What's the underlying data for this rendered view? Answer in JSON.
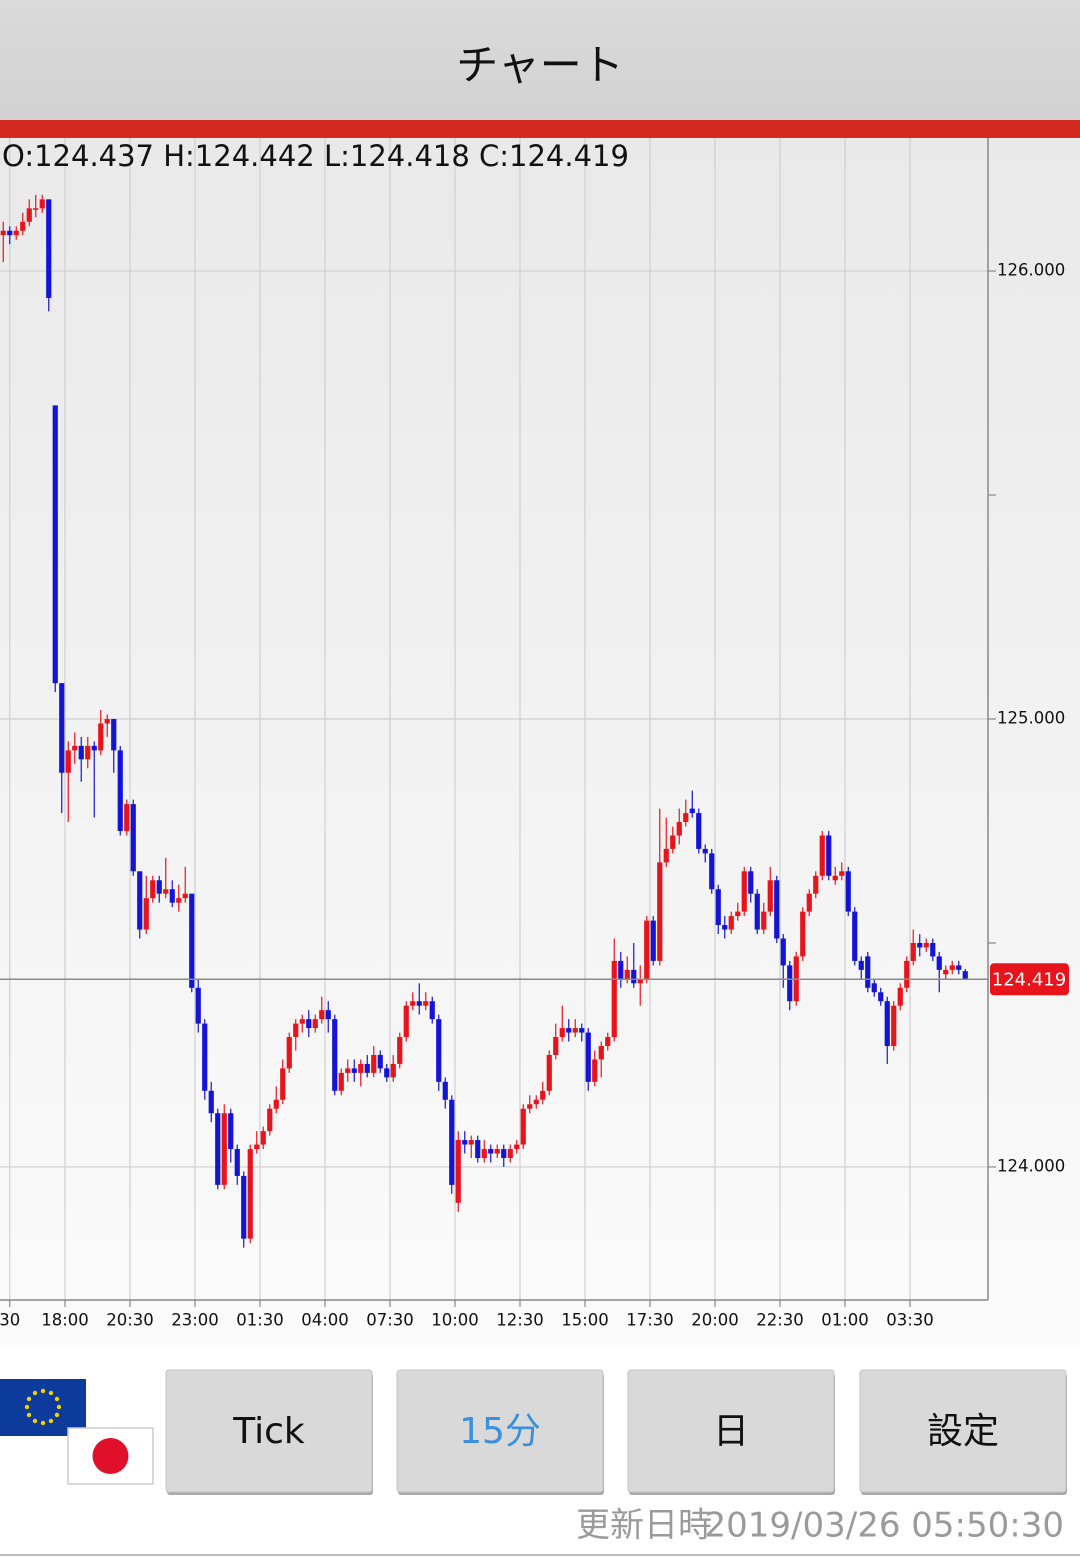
{
  "header": {
    "title": "チャート"
  },
  "chart_data": {
    "type": "candlestick",
    "ohlc_text": "O:124.437 H:124.442 L:124.418 C:124.419",
    "up_color": "#e8141b",
    "down_color": "#1414d6",
    "open": [
      126.08,
      126.09,
      126.08,
      126.09,
      126.11,
      126.14,
      126.14,
      126.16,
      125.7,
      125.08,
      124.88,
      124.93,
      124.94,
      124.91,
      124.94,
      124.93,
      124.99,
      125.0,
      124.93,
      124.75,
      124.81,
      124.66,
      124.53,
      124.6,
      124.64,
      124.61,
      124.62,
      124.59,
      124.6,
      124.61,
      124.4,
      124.32,
      124.17,
      124.12,
      123.96,
      124.12,
      124.04,
      123.98,
      123.84,
      124.04,
      124.05,
      124.08,
      124.13,
      124.15,
      124.22,
      124.29,
      124.32,
      124.33,
      124.31,
      124.33,
      124.35,
      124.33,
      124.17,
      124.21,
      124.22,
      124.21,
      124.23,
      124.21,
      124.25,
      124.22,
      124.2,
      124.23,
      124.29,
      124.36,
      124.37,
      124.36,
      124.37,
      124.33,
      124.19,
      124.15,
      123.92,
      124.06,
      124.05,
      124.06,
      124.02,
      124.04,
      124.03,
      124.04,
      124.02,
      124.04,
      124.05,
      124.13,
      124.14,
      124.15,
      124.17,
      124.25,
      124.29,
      124.31,
      124.3,
      124.31,
      124.3,
      124.19,
      124.24,
      124.27,
      124.29,
      124.46,
      124.42,
      124.44,
      124.41,
      124.42,
      124.55,
      124.46,
      124.68,
      124.71,
      124.74,
      124.77,
      124.8,
      124.79,
      124.71,
      124.7,
      124.62,
      124.54,
      124.53,
      124.56,
      124.57,
      124.66,
      124.61,
      124.53,
      124.57,
      124.64,
      124.51,
      124.45,
      124.37,
      124.47,
      124.57,
      124.61,
      124.65,
      124.74,
      124.64,
      124.65,
      124.66,
      124.57,
      124.46,
      124.47,
      124.41,
      124.39,
      124.37,
      124.27,
      124.36,
      124.4,
      124.46,
      124.5,
      124.49,
      124.5,
      124.47,
      124.43,
      124.44,
      124.45,
      124.437
    ],
    "high": [
      126.11,
      126.1,
      126.1,
      126.13,
      126.16,
      126.17,
      126.17,
      126.16,
      125.7,
      125.08,
      124.95,
      124.97,
      124.96,
      124.96,
      124.95,
      125.02,
      125.01,
      125.0,
      124.94,
      124.82,
      124.82,
      124.66,
      124.65,
      124.65,
      124.65,
      124.69,
      124.64,
      124.63,
      124.67,
      124.61,
      124.42,
      124.33,
      124.19,
      124.13,
      124.14,
      124.13,
      124.05,
      123.99,
      124.05,
      124.08,
      124.09,
      124.14,
      124.18,
      124.24,
      124.3,
      124.33,
      124.34,
      124.35,
      124.34,
      124.38,
      124.37,
      124.34,
      124.22,
      124.24,
      124.24,
      124.24,
      124.25,
      124.27,
      124.26,
      124.23,
      124.25,
      124.3,
      124.37,
      124.39,
      124.41,
      124.39,
      124.38,
      124.34,
      124.2,
      124.16,
      124.08,
      124.08,
      124.07,
      124.07,
      124.06,
      124.05,
      124.05,
      124.05,
      124.05,
      124.06,
      124.14,
      124.16,
      124.16,
      124.19,
      124.26,
      124.32,
      124.36,
      124.33,
      124.33,
      124.32,
      124.31,
      124.26,
      124.28,
      124.3,
      124.51,
      124.48,
      124.47,
      124.5,
      124.45,
      124.56,
      124.56,
      124.8,
      124.78,
      124.76,
      124.8,
      124.82,
      124.84,
      124.8,
      124.72,
      124.71,
      124.63,
      124.56,
      124.57,
      124.59,
      124.67,
      124.67,
      124.62,
      124.59,
      124.67,
      124.65,
      124.52,
      124.46,
      124.48,
      124.58,
      124.62,
      124.66,
      124.75,
      124.75,
      124.67,
      124.68,
      124.67,
      124.58,
      124.47,
      124.48,
      124.42,
      124.4,
      124.38,
      124.37,
      124.41,
      124.47,
      124.53,
      124.52,
      124.51,
      124.51,
      124.48,
      124.45,
      124.46,
      124.46,
      124.442
    ],
    "low": [
      126.02,
      126.06,
      126.07,
      126.08,
      126.1,
      126.12,
      126.13,
      125.91,
      125.06,
      124.79,
      124.77,
      124.9,
      124.86,
      124.89,
      124.78,
      124.92,
      124.96,
      124.88,
      124.74,
      124.74,
      124.65,
      124.51,
      124.52,
      124.59,
      124.59,
      124.6,
      124.58,
      124.57,
      124.59,
      124.39,
      124.3,
      124.15,
      124.1,
      123.95,
      123.95,
      124.01,
      123.96,
      123.82,
      123.83,
      124.03,
      124.04,
      124.07,
      124.12,
      124.14,
      124.21,
      124.26,
      124.3,
      124.29,
      124.3,
      124.32,
      124.3,
      124.16,
      124.16,
      124.19,
      124.19,
      124.18,
      124.2,
      124.2,
      124.21,
      124.19,
      124.19,
      124.22,
      124.28,
      124.35,
      124.34,
      124.35,
      124.32,
      124.17,
      124.13,
      123.94,
      123.9,
      124.03,
      124.02,
      124.01,
      124.01,
      124.01,
      124.02,
      124.0,
      124.01,
      124.03,
      124.04,
      124.12,
      124.13,
      124.14,
      124.16,
      124.24,
      124.28,
      124.28,
      124.29,
      124.28,
      124.17,
      124.18,
      124.2,
      124.26,
      124.28,
      124.4,
      124.41,
      124.4,
      124.36,
      124.41,
      124.45,
      124.45,
      124.67,
      124.7,
      124.72,
      124.76,
      124.78,
      124.7,
      124.68,
      124.61,
      124.52,
      124.51,
      124.52,
      124.55,
      124.56,
      124.59,
      124.52,
      124.52,
      124.56,
      124.5,
      124.4,
      124.35,
      124.36,
      124.46,
      124.56,
      124.6,
      124.64,
      124.64,
      124.63,
      124.64,
      124.56,
      124.45,
      124.42,
      124.39,
      124.38,
      124.36,
      124.23,
      124.26,
      124.35,
      124.39,
      124.45,
      124.47,
      124.48,
      124.46,
      124.39,
      124.42,
      124.43,
      124.43,
      124.418
    ],
    "close": [
      126.09,
      126.08,
      126.09,
      126.11,
      126.14,
      126.14,
      126.16,
      125.94,
      125.08,
      124.88,
      124.93,
      124.94,
      124.91,
      124.94,
      124.93,
      124.99,
      125.0,
      124.93,
      124.75,
      124.81,
      124.66,
      124.53,
      124.6,
      124.64,
      124.61,
      124.62,
      124.59,
      124.6,
      124.61,
      124.4,
      124.32,
      124.17,
      124.12,
      123.96,
      124.12,
      124.04,
      123.98,
      123.84,
      124.04,
      124.05,
      124.08,
      124.13,
      124.15,
      124.22,
      124.29,
      124.32,
      124.33,
      124.31,
      124.33,
      124.35,
      124.33,
      124.17,
      124.21,
      124.22,
      124.21,
      124.23,
      124.21,
      124.25,
      124.22,
      124.2,
      124.23,
      124.29,
      124.36,
      124.37,
      124.36,
      124.37,
      124.33,
      124.19,
      124.15,
      123.96,
      124.06,
      124.05,
      124.06,
      124.02,
      124.04,
      124.03,
      124.04,
      124.02,
      124.04,
      124.05,
      124.13,
      124.14,
      124.15,
      124.17,
      124.25,
      124.29,
      124.31,
      124.3,
      124.31,
      124.3,
      124.19,
      124.24,
      124.27,
      124.29,
      124.46,
      124.42,
      124.44,
      124.41,
      124.42,
      124.55,
      124.46,
      124.68,
      124.71,
      124.74,
      124.77,
      124.79,
      124.79,
      124.71,
      124.7,
      124.62,
      124.54,
      124.53,
      124.56,
      124.57,
      124.66,
      124.61,
      124.53,
      124.57,
      124.64,
      124.51,
      124.45,
      124.37,
      124.47,
      124.57,
      124.61,
      124.65,
      124.74,
      124.65,
      124.65,
      124.66,
      124.57,
      124.46,
      124.44,
      124.4,
      124.39,
      124.37,
      124.27,
      124.36,
      124.4,
      124.46,
      124.5,
      124.49,
      124.5,
      124.47,
      124.44,
      124.44,
      124.45,
      124.44,
      124.419
    ],
    "xlim": [
      -0.5,
      151.5
    ],
    "xticks": [
      {
        "value": 1,
        "label": "30"
      },
      {
        "value": 9.5,
        "label": "18:00"
      },
      {
        "value": 19.5,
        "label": "20:30"
      },
      {
        "value": 29.5,
        "label": "23:00"
      },
      {
        "value": 39.5,
        "label": "01:30"
      },
      {
        "value": 49.5,
        "label": "04:00"
      },
      {
        "value": 59.5,
        "label": "07:30"
      },
      {
        "value": 69.5,
        "label": "10:00"
      },
      {
        "value": 79.5,
        "label": "12:30"
      },
      {
        "value": 89.5,
        "label": "15:00"
      },
      {
        "value": 99.5,
        "label": "17:30"
      },
      {
        "value": 109.5,
        "label": "20:00"
      },
      {
        "value": 119.5,
        "label": "22:30"
      },
      {
        "value": 129.5,
        "label": "01:00"
      },
      {
        "value": 139.5,
        "label": "03:30"
      }
    ],
    "ylim": [
      123.703,
      126.297
    ],
    "yticks": [
      {
        "value": 124,
        "label": "124.000"
      },
      {
        "value": 125,
        "label": "125.000"
      },
      {
        "value": 126,
        "label": "126.000"
      }
    ],
    "yminor_ticks": [
      124.5,
      125.5
    ],
    "last_price": {
      "value": 124.419,
      "label": "124.419"
    },
    "grid": true
  },
  "buttons": [
    "Tick",
    "15分",
    "日",
    "設定"
  ],
  "selected_button": 1,
  "footer": {
    "label": "更新日時",
    "time": "2019/03/26 05:50:30"
  }
}
